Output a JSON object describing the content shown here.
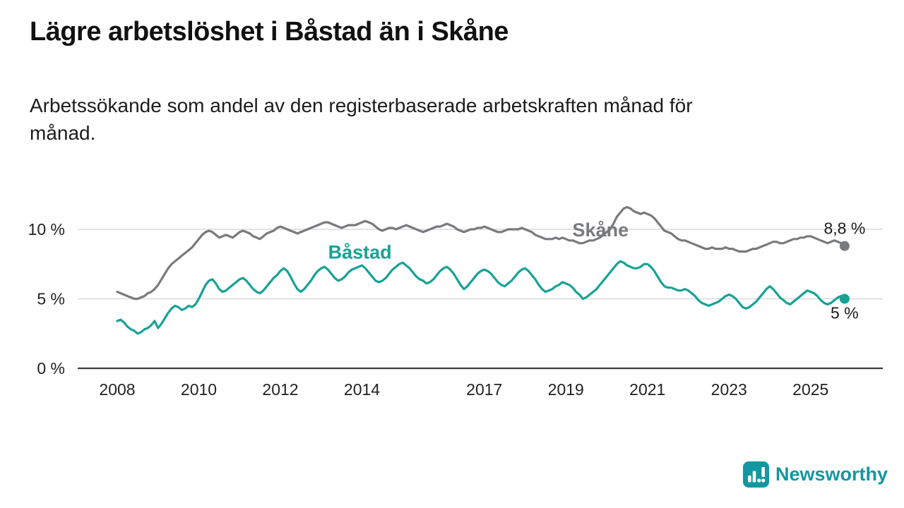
{
  "page": {
    "title": "Lägre arbetslöshet i Båstad än i Skåne",
    "subtitle": "Arbetssökande som andel av den registerbaserade arbetskraften månad för månad."
  },
  "branding": {
    "logo_text": "Newsworthy",
    "color": "#1397a0"
  },
  "chart_data": {
    "type": "line",
    "title": "Lägre arbetslöshet i Båstad än i Skåne",
    "subtitle": "Arbetssökande som andel av den registerbaserade arbetskraften månad för månad.",
    "unit": "%",
    "x_axis": {
      "interval": "monthly",
      "start_year": 2008,
      "start_month": 1,
      "end_year": 2025,
      "end_month": 11,
      "ticks": [
        {
          "year": 2008,
          "label": "2008"
        },
        {
          "year": 2010,
          "label": "2010"
        },
        {
          "year": 2012,
          "label": "2012"
        },
        {
          "year": 2014,
          "label": "2014"
        },
        {
          "year": 2017,
          "label": "2017"
        },
        {
          "year": 2019,
          "label": "2019"
        },
        {
          "year": 2021,
          "label": "2021"
        },
        {
          "year": 2023,
          "label": "2023"
        },
        {
          "year": 2025,
          "label": "2025"
        }
      ]
    },
    "y_axis": {
      "range": [
        0,
        12.3
      ],
      "grid": true,
      "ticks": [
        {
          "value": 0,
          "label": "0 %"
        },
        {
          "value": 5,
          "label": "5 %"
        },
        {
          "value": 10,
          "label": "10 %"
        }
      ]
    },
    "series": [
      {
        "id": "skane",
        "name": "Skåne",
        "color": "#797a7d",
        "end_value": 8.8,
        "end_label": "8,8 %",
        "end_label_position": "above",
        "name_label": {
          "x_year": 2019.85,
          "y_value": 9.95
        },
        "values": [
          5.5,
          5.4,
          5.3,
          5.2,
          5.1,
          5.0,
          5.0,
          5.1,
          5.2,
          5.4,
          5.5,
          5.7,
          6.0,
          6.4,
          6.8,
          7.2,
          7.5,
          7.7,
          7.9,
          8.1,
          8.3,
          8.5,
          8.7,
          9.0,
          9.3,
          9.6,
          9.8,
          9.9,
          9.8,
          9.6,
          9.4,
          9.5,
          9.6,
          9.5,
          9.4,
          9.6,
          9.8,
          9.9,
          9.8,
          9.7,
          9.5,
          9.4,
          9.3,
          9.5,
          9.7,
          9.8,
          9.9,
          10.1,
          10.2,
          10.1,
          10.0,
          9.9,
          9.8,
          9.7,
          9.8,
          9.9,
          10.0,
          10.1,
          10.2,
          10.3,
          10.4,
          10.5,
          10.5,
          10.4,
          10.3,
          10.2,
          10.1,
          10.2,
          10.3,
          10.3,
          10.3,
          10.4,
          10.5,
          10.6,
          10.5,
          10.4,
          10.2,
          10.0,
          9.9,
          10.0,
          10.1,
          10.1,
          10.0,
          10.1,
          10.2,
          10.3,
          10.2,
          10.1,
          10.0,
          9.9,
          9.8,
          9.9,
          10.0,
          10.1,
          10.2,
          10.2,
          10.3,
          10.4,
          10.3,
          10.2,
          10.0,
          9.9,
          9.8,
          9.9,
          10.0,
          10.0,
          10.1,
          10.1,
          10.2,
          10.1,
          10.0,
          9.9,
          9.8,
          9.8,
          9.9,
          10.0,
          10.0,
          10.0,
          10.0,
          10.1,
          10.0,
          9.9,
          9.8,
          9.6,
          9.5,
          9.4,
          9.3,
          9.3,
          9.3,
          9.4,
          9.3,
          9.4,
          9.3,
          9.2,
          9.2,
          9.1,
          9.0,
          9.0,
          9.1,
          9.2,
          9.2,
          9.3,
          9.4,
          9.6,
          9.8,
          10.0,
          10.4,
          10.9,
          11.2,
          11.5,
          11.6,
          11.5,
          11.3,
          11.2,
          11.1,
          11.2,
          11.1,
          11.0,
          10.8,
          10.5,
          10.2,
          9.9,
          9.8,
          9.7,
          9.5,
          9.3,
          9.2,
          9.2,
          9.1,
          9.0,
          8.9,
          8.8,
          8.7,
          8.6,
          8.6,
          8.7,
          8.6,
          8.6,
          8.6,
          8.7,
          8.6,
          8.6,
          8.5,
          8.4,
          8.4,
          8.4,
          8.5,
          8.6,
          8.6,
          8.7,
          8.8,
          8.9,
          9.0,
          9.1,
          9.1,
          9.0,
          9.0,
          9.1,
          9.2,
          9.3,
          9.3,
          9.4,
          9.4,
          9.5,
          9.5,
          9.4,
          9.3,
          9.2,
          9.1,
          9.0,
          9.1,
          9.2,
          9.1,
          9.0,
          8.8
        ]
      },
      {
        "id": "bastad",
        "name": "Båstad",
        "color": "#16a295",
        "end_value": 5.0,
        "end_label": "5 %",
        "end_label_position": "below",
        "name_label": {
          "x_year": 2013.95,
          "y_value": 8.35
        },
        "values": [
          3.4,
          3.5,
          3.3,
          3.0,
          2.8,
          2.7,
          2.5,
          2.6,
          2.8,
          2.9,
          3.1,
          3.4,
          2.9,
          3.2,
          3.6,
          4.0,
          4.3,
          4.5,
          4.4,
          4.2,
          4.3,
          4.5,
          4.4,
          4.6,
          5.0,
          5.5,
          6.0,
          6.3,
          6.4,
          6.1,
          5.7,
          5.5,
          5.6,
          5.8,
          6.0,
          6.2,
          6.4,
          6.5,
          6.3,
          6.0,
          5.7,
          5.5,
          5.4,
          5.6,
          5.9,
          6.2,
          6.5,
          6.7,
          7.0,
          7.2,
          7.0,
          6.6,
          6.1,
          5.7,
          5.5,
          5.7,
          6.0,
          6.3,
          6.7,
          7.0,
          7.2,
          7.3,
          7.1,
          6.8,
          6.5,
          6.3,
          6.4,
          6.6,
          6.9,
          7.1,
          7.2,
          7.3,
          7.4,
          7.2,
          6.9,
          6.6,
          6.3,
          6.2,
          6.3,
          6.5,
          6.8,
          7.1,
          7.3,
          7.5,
          7.6,
          7.4,
          7.2,
          6.9,
          6.6,
          6.4,
          6.3,
          6.1,
          6.2,
          6.4,
          6.7,
          7.0,
          7.2,
          7.3,
          7.1,
          6.8,
          6.4,
          6.0,
          5.7,
          5.9,
          6.2,
          6.5,
          6.8,
          7.0,
          7.1,
          7.0,
          6.8,
          6.5,
          6.2,
          6.0,
          5.9,
          6.1,
          6.3,
          6.6,
          6.9,
          7.1,
          7.2,
          7.0,
          6.7,
          6.4,
          6.0,
          5.7,
          5.5,
          5.6,
          5.7,
          5.9,
          6.0,
          6.2,
          6.1,
          6.0,
          5.8,
          5.5,
          5.3,
          5.0,
          5.1,
          5.3,
          5.5,
          5.7,
          6.0,
          6.3,
          6.6,
          6.9,
          7.2,
          7.5,
          7.7,
          7.6,
          7.4,
          7.3,
          7.2,
          7.2,
          7.3,
          7.5,
          7.5,
          7.3,
          7.0,
          6.6,
          6.2,
          5.9,
          5.8,
          5.8,
          5.7,
          5.6,
          5.6,
          5.7,
          5.6,
          5.4,
          5.2,
          4.9,
          4.7,
          4.6,
          4.5,
          4.6,
          4.7,
          4.8,
          5.0,
          5.2,
          5.3,
          5.2,
          5.0,
          4.7,
          4.4,
          4.3,
          4.4,
          4.6,
          4.8,
          5.1,
          5.4,
          5.7,
          5.9,
          5.7,
          5.4,
          5.1,
          4.9,
          4.7,
          4.6,
          4.8,
          5.0,
          5.2,
          5.4,
          5.6,
          5.5,
          5.4,
          5.2,
          4.9,
          4.7,
          4.6,
          4.7,
          4.9,
          5.1,
          5.2,
          5.0
        ]
      }
    ]
  }
}
